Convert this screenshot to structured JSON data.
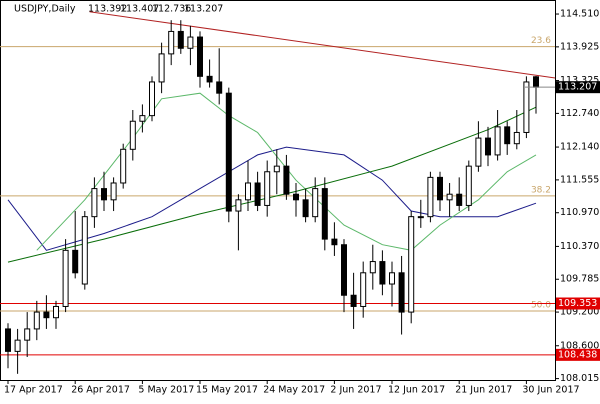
{
  "chart_data": {
    "type": "candlestick",
    "title": "USDJPY,Daily",
    "categories": [
      "17 Apr 2017",
      null,
      null,
      null,
      null,
      null,
      null,
      "26 Apr 2017",
      null,
      null,
      null,
      null,
      null,
      null,
      "5 May 2017",
      null,
      null,
      null,
      null,
      null,
      "15 May 2017",
      null,
      null,
      null,
      null,
      null,
      null,
      "24 May 2017",
      null,
      null,
      null,
      null,
      null,
      null,
      "2 Jun 2017",
      null,
      null,
      null,
      null,
      null,
      "12 Jun 2017",
      null,
      null,
      null,
      null,
      null,
      null,
      "21 Jun 2017",
      null,
      null,
      null,
      null,
      null,
      null,
      "30 Jun 2017",
      null
    ],
    "open": [
      108.9,
      108.5,
      108.7,
      108.9,
      109.2,
      109.1,
      109.3,
      110.3,
      109.7,
      110.9,
      111.4,
      111.2,
      111.5,
      112.1,
      112.6,
      112.7,
      113.3,
      113.8,
      114.2,
      113.9,
      114.1,
      113.4,
      113.3,
      113.1,
      111.0,
      111.2,
      111.5,
      111.1,
      111.7,
      111.8,
      111.3,
      111.2,
      110.9,
      111.4,
      110.5,
      110.4,
      109.5,
      109.3,
      109.9,
      110.1,
      109.7,
      109.9,
      109.2,
      110.9,
      110.9,
      111.6,
      111.2,
      111.3,
      111.1,
      111.8,
      112.3,
      112.0,
      112.5,
      112.2,
      112.4,
      113.392
    ],
    "high": [
      109.0,
      108.9,
      109.2,
      109.4,
      109.5,
      109.4,
      110.5,
      111.0,
      111.0,
      111.6,
      111.7,
      111.6,
      112.2,
      112.8,
      112.9,
      113.4,
      114.0,
      114.4,
      114.4,
      114.3,
      114.2,
      113.7,
      113.9,
      113.2,
      111.3,
      111.9,
      111.7,
      111.9,
      112.1,
      112.0,
      111.5,
      111.4,
      111.6,
      111.6,
      110.8,
      110.5,
      109.9,
      110.1,
      110.4,
      110.3,
      110.1,
      110.2,
      111.0,
      111.2,
      111.7,
      111.7,
      111.5,
      111.6,
      111.9,
      112.6,
      112.5,
      112.8,
      112.6,
      112.8,
      113.4,
      113.407
    ],
    "low": [
      108.2,
      108.1,
      108.4,
      108.7,
      108.9,
      108.9,
      109.2,
      109.8,
      109.6,
      110.7,
      111.0,
      111.0,
      111.4,
      111.9,
      112.4,
      112.6,
      113.1,
      113.6,
      113.8,
      113.6,
      113.2,
      113.2,
      112.9,
      110.8,
      110.3,
      111.0,
      111.0,
      110.9,
      111.3,
      111.2,
      110.9,
      110.8,
      110.8,
      110.3,
      110.2,
      109.2,
      108.9,
      109.1,
      109.6,
      109.5,
      109.3,
      108.8,
      109.0,
      110.7,
      110.8,
      111.0,
      110.9,
      111.0,
      111.0,
      111.7,
      111.8,
      111.9,
      112.0,
      112.1,
      112.3,
      112.736
    ],
    "close": [
      108.5,
      108.7,
      108.9,
      109.2,
      109.1,
      109.3,
      110.3,
      109.9,
      110.9,
      111.4,
      111.2,
      111.5,
      112.1,
      112.6,
      112.7,
      113.3,
      113.8,
      114.2,
      113.9,
      114.1,
      113.4,
      113.3,
      113.1,
      111.0,
      111.2,
      111.5,
      111.1,
      111.7,
      111.8,
      111.3,
      111.2,
      110.9,
      111.4,
      110.5,
      110.4,
      109.5,
      109.3,
      109.9,
      110.1,
      109.7,
      109.9,
      109.2,
      110.9,
      110.9,
      111.6,
      111.2,
      111.3,
      111.1,
      111.8,
      112.3,
      112.0,
      112.5,
      112.2,
      112.4,
      113.3,
      113.207
    ],
    "bull_color": "#ffffff",
    "bear_color": "#000000",
    "lines": [
      {
        "color": "#1c1c8a",
        "x": [
          0,
          4,
          10,
          15,
          20,
          26,
          29,
          35,
          39,
          42,
          45,
          51,
          55
        ],
        "values": [
          111.2,
          110.3,
          110.6,
          110.9,
          111.4,
          112.0,
          112.14,
          112.0,
          111.55,
          111.0,
          110.9,
          110.9,
          111.14
        ]
      },
      {
        "color": "#5cb86a",
        "x": [
          3,
          8,
          13,
          16,
          20,
          23,
          26,
          30,
          35,
          39,
          42,
          45,
          49,
          52,
          55
        ],
        "values": [
          110.3,
          111.2,
          112.3,
          113.0,
          113.1,
          112.7,
          112.4,
          111.55,
          110.75,
          110.4,
          110.3,
          110.75,
          111.2,
          111.7,
          112.0
        ]
      },
      {
        "color": "#0a6e0a",
        "x": [
          0,
          10,
          20,
          30,
          40,
          50,
          55
        ],
        "values": [
          110.09,
          110.5,
          110.95,
          111.35,
          111.8,
          112.45,
          112.85
        ]
      },
      {
        "color": "#b22222",
        "x": [
          8.5,
          57
        ],
        "values": [
          114.55,
          113.37
        ]
      }
    ],
    "fib_levels": [
      {
        "label": "23.6",
        "value": 113.93
      },
      {
        "label": "38.2",
        "value": 111.27
      },
      {
        "label": "50.0",
        "value": 109.22
      }
    ],
    "fib_color": "#c9a66b",
    "hlines": [
      {
        "value": 109.353,
        "color": "#e00000"
      },
      {
        "value": 108.438,
        "color": "#e00000"
      }
    ],
    "ylim": [
      107.99,
      114.76
    ],
    "yticks": [
      {
        "value": 114.51,
        "label": "114.510"
      },
      113.925,
      113.325,
      {
        "value": 112.74,
        "label": "112.740"
      },
      {
        "value": 112.14,
        "label": "112.140"
      },
      111.555,
      {
        "value": 110.97,
        "label": "110.970"
      },
      {
        "value": 110.37,
        "label": "110.370"
      },
      109.785,
      {
        "value": 109.2,
        "label": "109.200"
      },
      {
        "value": 108.6,
        "label": "108.600"
      },
      108.015
    ]
  }
}
